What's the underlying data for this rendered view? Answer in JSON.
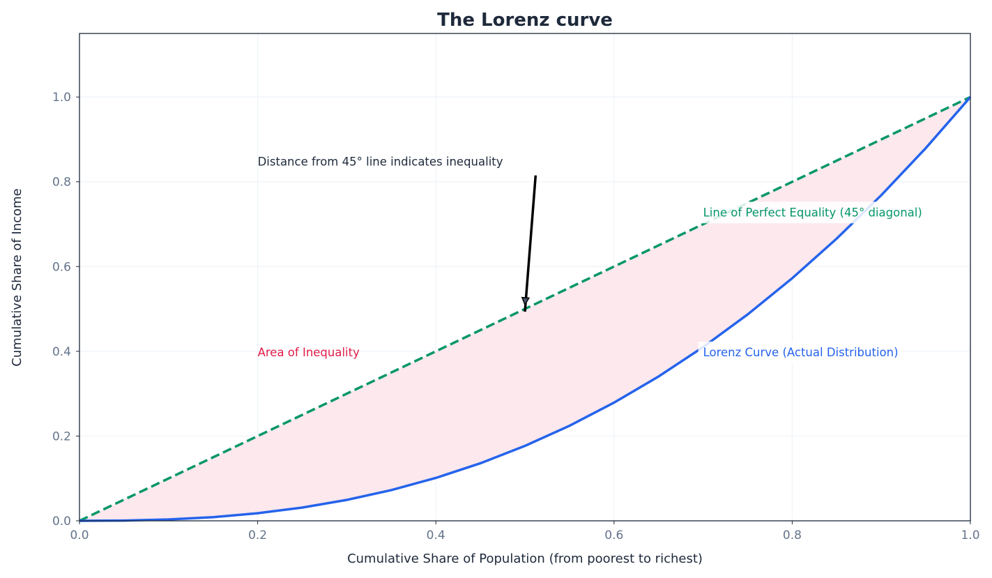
{
  "chart_data": {
    "type": "line",
    "title": "The Lorenz curve",
    "xlabel": "Cumulative Share of Population (from poorest to richest)",
    "ylabel": "Cumulative Share of Income",
    "xlim": [
      0,
      1
    ],
    "ylim": [
      0,
      1.15
    ],
    "xticks": [
      "0.0",
      "0.2",
      "0.4",
      "0.6",
      "0.8",
      "1.0"
    ],
    "yticks": [
      "0.0",
      "0.2",
      "0.4",
      "0.6",
      "0.8",
      "1.0"
    ],
    "grid": true,
    "series": [
      {
        "name": "Line of Perfect Equality (45° diagonal)",
        "style": "dashed",
        "color": "#059669",
        "x": [
          0,
          1
        ],
        "y": [
          0,
          1
        ]
      },
      {
        "name": "Lorenz Curve (Actual Distribution)",
        "style": "solid",
        "color": "#2563eb",
        "x": [
          0,
          0.05,
          0.1,
          0.15,
          0.2,
          0.25,
          0.3,
          0.35,
          0.4,
          0.45,
          0.5,
          0.55,
          0.6,
          0.65,
          0.7,
          0.75,
          0.8,
          0.85,
          0.9,
          0.95,
          1
        ],
        "y": [
          0,
          0.0006,
          0.0032,
          0.0087,
          0.0179,
          0.0313,
          0.0493,
          0.0725,
          0.1012,
          0.1358,
          0.1768,
          0.2243,
          0.2789,
          0.3406,
          0.41,
          0.4871,
          0.5724,
          0.6661,
          0.7684,
          0.8797,
          1
        ]
      }
    ],
    "fill": {
      "label": "Area of Inequality",
      "color": "#fce7ec",
      "text_color": "#e11d48"
    },
    "annotations": [
      {
        "text": "Distance from 45° line indicates inequality",
        "x": 0.2,
        "y": 0.85,
        "color": "#1e293b",
        "arrow_from": [
          0.512,
          0.815
        ],
        "arrow_to": [
          0.5,
          0.51
        ]
      },
      {
        "text": "Line of Perfect Equality (45° diagonal)",
        "x": 0.7,
        "y": 0.73,
        "color": "#059669"
      },
      {
        "text": "Lorenz Curve (Actual Distribution)",
        "x": 0.7,
        "y": 0.4,
        "color": "#2563eb"
      },
      {
        "text": "Area of Inequality",
        "x": 0.2,
        "y": 0.4,
        "color": "#e11d48"
      }
    ]
  }
}
